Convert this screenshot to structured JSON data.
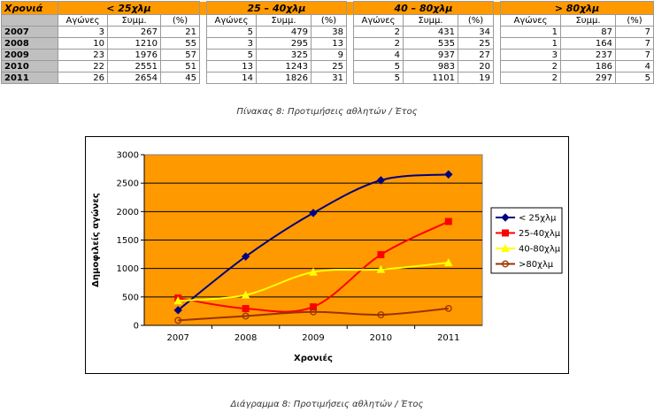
{
  "table": {
    "year_header": "Χρονιά",
    "groups": [
      "< 25χλμ",
      "25 – 40χλμ",
      "40 – 80χλμ",
      "> 80χλμ"
    ],
    "sub_headers": [
      "Αγώνες",
      "Συμμ.",
      "(%)"
    ],
    "rows": [
      {
        "year": "2007",
        "cells": [
          "3",
          "267",
          "21",
          "5",
          "479",
          "38",
          "2",
          "431",
          "34",
          "1",
          "87",
          "7"
        ]
      },
      {
        "year": "2008",
        "cells": [
          "10",
          "1210",
          "55",
          "3",
          "295",
          "13",
          "2",
          "535",
          "25",
          "1",
          "164",
          "7"
        ]
      },
      {
        "year": "2009",
        "cells": [
          "23",
          "1976",
          "57",
          "5",
          "325",
          "9",
          "4",
          "937",
          "27",
          "3",
          "237",
          "7"
        ]
      },
      {
        "year": "2010",
        "cells": [
          "22",
          "2551",
          "51",
          "13",
          "1243",
          "25",
          "5",
          "983",
          "20",
          "2",
          "186",
          "4"
        ]
      },
      {
        "year": "2011",
        "cells": [
          "26",
          "2654",
          "45",
          "14",
          "1826",
          "31",
          "5",
          "1101",
          "19",
          "2",
          "297",
          "5"
        ]
      }
    ]
  },
  "table_caption": "Πίνακας 8: Προτιμήσεις αθλητών / Έτος",
  "chart_caption": "Διάγραμμα 8: Προτιμήσεις αθλητών / Έτος",
  "chart_data": {
    "type": "line",
    "xlabel": "Χρονιές",
    "ylabel": "Δημοφιλείς αγώνες",
    "categories": [
      "2007",
      "2008",
      "2009",
      "2010",
      "2011"
    ],
    "ylim": [
      0,
      3000
    ],
    "yticks": [
      "0",
      "500",
      "1000",
      "1500",
      "2000",
      "2500",
      "3000"
    ],
    "grid": true,
    "legend": "right",
    "plot_background": "#ff9900",
    "series": [
      {
        "name": "< 25χλμ",
        "values": [
          267,
          1210,
          1976,
          2551,
          2654
        ],
        "color": "#000080",
        "marker": "diamond"
      },
      {
        "name": "25-40χλμ",
        "values": [
          479,
          295,
          325,
          1243,
          1826
        ],
        "color": "#ff0000",
        "marker": "square"
      },
      {
        "name": "40-80χλμ",
        "values": [
          431,
          535,
          937,
          983,
          1101
        ],
        "color": "#ffff00",
        "marker": "triangle"
      },
      {
        "name": ">80χλμ",
        "values": [
          87,
          164,
          237,
          186,
          297
        ],
        "color": "#993300",
        "marker": "circle"
      }
    ]
  }
}
